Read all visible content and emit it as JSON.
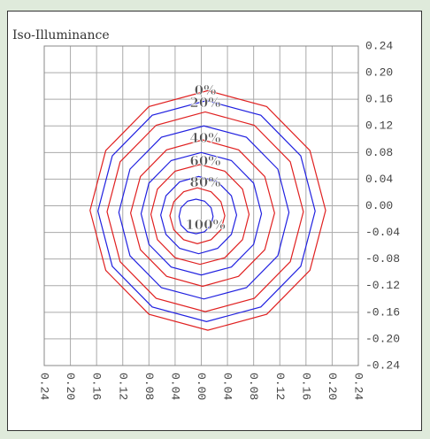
{
  "chart_data": {
    "type": "contour",
    "title": "Iso-Illuminance",
    "xlim": [
      -0.24,
      0.24
    ],
    "ylim": [
      -0.24,
      0.24
    ],
    "xticks": [
      {
        "value": -0.24,
        "label": "0.24"
      },
      {
        "value": -0.2,
        "label": "0.20"
      },
      {
        "value": -0.16,
        "label": "0.16"
      },
      {
        "value": -0.12,
        "label": "0.12"
      },
      {
        "value": -0.08,
        "label": "0.08"
      },
      {
        "value": -0.04,
        "label": "0.04"
      },
      {
        "value": 0,
        "label": "0.00"
      },
      {
        "value": 0.04,
        "label": "0.04"
      },
      {
        "value": 0.08,
        "label": "0.08"
      },
      {
        "value": 0.12,
        "label": "0.12"
      },
      {
        "value": 0.16,
        "label": "0.16"
      },
      {
        "value": 0.2,
        "label": "0.20"
      },
      {
        "value": 0.24,
        "label": "0.24"
      }
    ],
    "yticks": [
      {
        "value": 0.24,
        "label": "0.24"
      },
      {
        "value": 0.2,
        "label": "0.20"
      },
      {
        "value": 0.16,
        "label": "0.16"
      },
      {
        "value": 0.12,
        "label": "0.12"
      },
      {
        "value": 0.08,
        "label": "0.08"
      },
      {
        "value": 0.04,
        "label": "0.04"
      },
      {
        "value": 0,
        "label": "0.00"
      },
      {
        "value": -0.04,
        "label": "-0.04"
      },
      {
        "value": -0.08,
        "label": "-0.08"
      },
      {
        "value": -0.12,
        "label": "-0.12"
      },
      {
        "value": -0.16,
        "label": "-0.16"
      },
      {
        "value": -0.2,
        "label": "-0.20"
      },
      {
        "value": -0.24,
        "label": "-0.24"
      }
    ],
    "grid": true,
    "annotations": [
      "0%",
      "20%",
      "40%",
      "60%",
      "80%",
      "100%"
    ],
    "series": [
      {
        "color": "#e02020",
        "x": [
          0.19,
          0.166,
          0.1,
          0.01,
          -0.08,
          -0.146,
          -0.17,
          -0.146,
          -0.08,
          0.01,
          0.1,
          0.166
        ],
        "y": [
          -0.007,
          0.083,
          0.149,
          0.173,
          0.149,
          0.083,
          -0.007,
          -0.097,
          -0.163,
          -0.187,
          -0.163,
          -0.097
        ]
      },
      {
        "color": "#2020e0",
        "x": [
          0.174,
          0.152,
          0.091,
          0.008,
          -0.075,
          -0.136,
          -0.158,
          -0.136,
          -0.075,
          0.008,
          0.091,
          0.152
        ],
        "y": [
          -0.008,
          0.075,
          0.136,
          0.158,
          0.136,
          0.075,
          -0.008,
          -0.091,
          -0.152,
          -0.174,
          -0.152,
          -0.091
        ]
      },
      {
        "color": "#e02020",
        "x": [
          0.156,
          0.136,
          0.081,
          0.006,
          -0.069,
          -0.124,
          -0.144,
          -0.124,
          -0.069,
          0.006,
          0.081,
          0.136
        ],
        "y": [
          -0.009,
          0.066,
          0.121,
          0.141,
          0.121,
          0.066,
          -0.009,
          -0.084,
          -0.139,
          -0.159,
          -0.139,
          -0.084
        ]
      },
      {
        "color": "#2020e0",
        "x": [
          0.134,
          0.117,
          0.069,
          0.004,
          -0.061,
          -0.109,
          -0.126,
          -0.109,
          -0.061,
          0.004,
          0.069,
          0.117
        ],
        "y": [
          -0.01,
          0.055,
          0.103,
          0.12,
          0.103,
          0.055,
          -0.01,
          -0.075,
          -0.123,
          -0.14,
          -0.123,
          -0.075
        ]
      },
      {
        "color": "#e02020",
        "x": [
          0.112,
          0.097,
          0.057,
          0.002,
          -0.053,
          -0.093,
          -0.108,
          -0.093,
          -0.053,
          0.002,
          0.057,
          0.097
        ],
        "y": [
          -0.011,
          0.044,
          0.084,
          0.099,
          0.084,
          0.044,
          -0.011,
          -0.066,
          -0.106,
          -0.121,
          -0.106,
          -0.066
        ]
      },
      {
        "color": "#2020e0",
        "x": [
          0.092,
          0.08,
          0.046,
          0,
          -0.046,
          -0.08,
          -0.092,
          -0.08,
          -0.046,
          0,
          0.046,
          0.08
        ],
        "y": [
          -0.012,
          0.034,
          0.068,
          0.08,
          0.068,
          0.034,
          -0.012,
          -0.058,
          -0.092,
          -0.104,
          -0.092,
          -0.058
        ]
      },
      {
        "color": "#e02020",
        "x": [
          0.073,
          0.063,
          0.036,
          -0.002,
          -0.04,
          -0.067,
          -0.077,
          -0.067,
          -0.04,
          -0.002,
          0.036,
          0.063
        ],
        "y": [
          -0.013,
          0.025,
          0.052,
          0.062,
          0.052,
          0.025,
          -0.013,
          -0.051,
          -0.078,
          -0.088,
          -0.078,
          -0.051
        ]
      },
      {
        "color": "#2020e0",
        "x": [
          0.054,
          0.046,
          0.025,
          -0.004,
          -0.033,
          -0.054,
          -0.062,
          -0.054,
          -0.033,
          -0.004,
          0.025,
          0.046
        ],
        "y": [
          -0.014,
          0.015,
          0.036,
          0.044,
          0.036,
          0.015,
          -0.014,
          -0.043,
          -0.064,
          -0.072,
          -0.064,
          -0.043
        ]
      },
      {
        "color": "#e02020",
        "x": [
          0.036,
          0.03,
          0.015,
          -0.006,
          -0.027,
          -0.042,
          -0.048,
          -0.042,
          -0.027,
          -0.006,
          0.015,
          0.03
        ],
        "y": [
          -0.015,
          0.006,
          0.021,
          0.027,
          0.021,
          0.006,
          -0.015,
          -0.036,
          -0.051,
          -0.057,
          -0.051,
          -0.036
        ]
      },
      {
        "color": "#2020e0",
        "x": [
          0.018,
          0.015,
          0.005,
          -0.008,
          -0.021,
          -0.031,
          -0.034,
          -0.031,
          -0.021,
          -0.008,
          0.005,
          0.015
        ],
        "y": [
          -0.016,
          -0.003,
          0.007,
          0.01,
          0.007,
          -0.003,
          -0.016,
          -0.029,
          -0.039,
          -0.042,
          -0.039,
          -0.029
        ]
      }
    ]
  }
}
